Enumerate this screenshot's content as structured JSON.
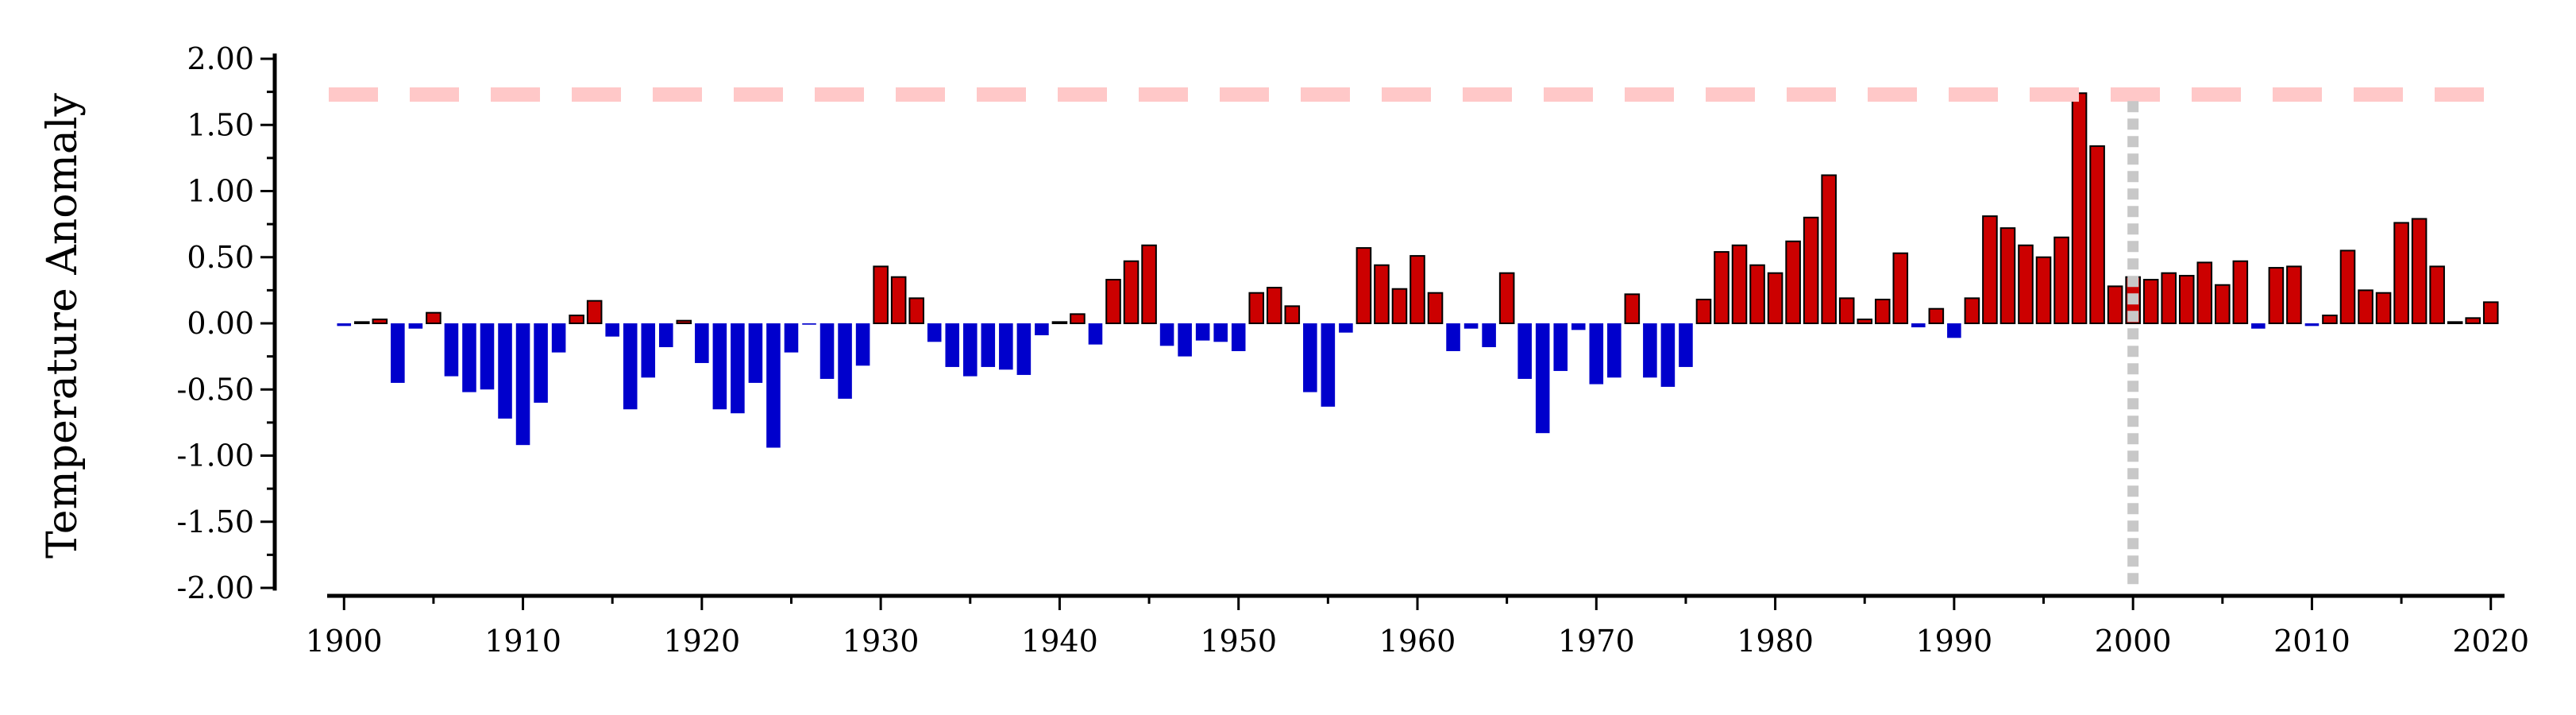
{
  "chart_data": {
    "type": "bar",
    "title": "",
    "xlabel": "",
    "ylabel": "Temperature Anomaly",
    "xlim": [
      1899.5,
      2020.5
    ],
    "ylim": [
      -2.0,
      2.0
    ],
    "x_ticks": [
      "1900",
      "1910",
      "1920",
      "1930",
      "1940",
      "1950",
      "1960",
      "1970",
      "1980",
      "1990",
      "2000",
      "2010",
      "2020"
    ],
    "y_ticks": [
      "2.00",
      "1.50",
      "1.00",
      "0.50",
      "0.00",
      "-0.50",
      "-1.00",
      "-1.50",
      "-2.00"
    ],
    "grid": false,
    "legend": "none",
    "colors": {
      "positive": "#cc0000",
      "negative": "#0000cc",
      "threshold_line": "#ffc8c8",
      "reference_line": "#c8c8c8"
    },
    "threshold_line": {
      "value": 1.73
    },
    "reference_line": {
      "x": 2000
    },
    "series": [
      {
        "years": [
          1900,
          1901,
          1902,
          1903,
          1904,
          1905,
          1906,
          1907,
          1908,
          1909,
          1910,
          1911,
          1912,
          1913,
          1914,
          1915,
          1916,
          1917,
          1918,
          1919,
          1920,
          1921,
          1922,
          1923,
          1924,
          1925,
          1926,
          1927,
          1928,
          1929,
          1930,
          1931,
          1932,
          1933,
          1934,
          1935,
          1936,
          1937,
          1938,
          1939,
          1940,
          1941,
          1942,
          1943,
          1944,
          1945,
          1946,
          1947,
          1948,
          1949,
          1950,
          1951,
          1952,
          1953,
          1954,
          1955,
          1956,
          1957,
          1958,
          1959,
          1960,
          1961,
          1962,
          1963,
          1964,
          1965,
          1966,
          1967,
          1968,
          1969,
          1970,
          1971,
          1972,
          1973,
          1974,
          1975,
          1976,
          1977,
          1978,
          1979,
          1980,
          1981,
          1982,
          1983,
          1984,
          1985,
          1986,
          1987,
          1988,
          1989,
          1990,
          1991,
          1992,
          1993,
          1994,
          1995,
          1996,
          1997,
          1998,
          1999,
          2000,
          2001,
          2002,
          2003,
          2004,
          2005,
          2006,
          2007,
          2008,
          2009,
          2010,
          2011,
          2012,
          2013,
          2014,
          2015,
          2016,
          2017,
          2018,
          2019,
          2020
        ],
        "values": [
          -0.02,
          0.01,
          0.03,
          -0.45,
          -0.04,
          0.08,
          -0.4,
          -0.52,
          -0.5,
          -0.72,
          -0.92,
          -0.6,
          -0.22,
          0.06,
          0.17,
          -0.1,
          -0.65,
          -0.41,
          -0.18,
          0.02,
          -0.3,
          -0.65,
          -0.68,
          -0.45,
          -0.94,
          -0.22,
          -0.01,
          -0.42,
          -0.57,
          -0.32,
          0.43,
          0.35,
          0.19,
          -0.14,
          -0.33,
          -0.4,
          -0.33,
          -0.35,
          -0.39,
          -0.09,
          0.01,
          0.07,
          -0.16,
          0.33,
          0.47,
          0.59,
          -0.17,
          -0.25,
          -0.13,
          -0.14,
          -0.21,
          0.23,
          0.27,
          0.13,
          -0.52,
          -0.63,
          -0.07,
          0.57,
          0.44,
          0.26,
          0.51,
          0.23,
          -0.21,
          -0.04,
          -0.18,
          0.38,
          -0.42,
          -0.83,
          -0.36,
          -0.05,
          -0.46,
          -0.41,
          0.22,
          -0.41,
          -0.48,
          -0.33,
          0.18,
          0.54,
          0.59,
          0.44,
          0.38,
          0.62,
          0.8,
          1.12,
          0.19,
          0.03,
          0.18,
          0.53,
          -0.03,
          0.11,
          -0.11,
          0.19,
          0.81,
          0.72,
          0.59,
          0.5,
          0.65,
          1.74,
          1.34,
          0.28,
          0.35,
          0.33,
          0.38,
          0.36,
          0.46,
          0.29,
          0.47,
          -0.04,
          0.42,
          0.43,
          -0.02,
          0.06,
          0.55,
          0.25,
          0.23,
          0.76,
          0.79,
          0.43,
          0.01,
          0.04,
          0.16
        ]
      }
    ]
  }
}
